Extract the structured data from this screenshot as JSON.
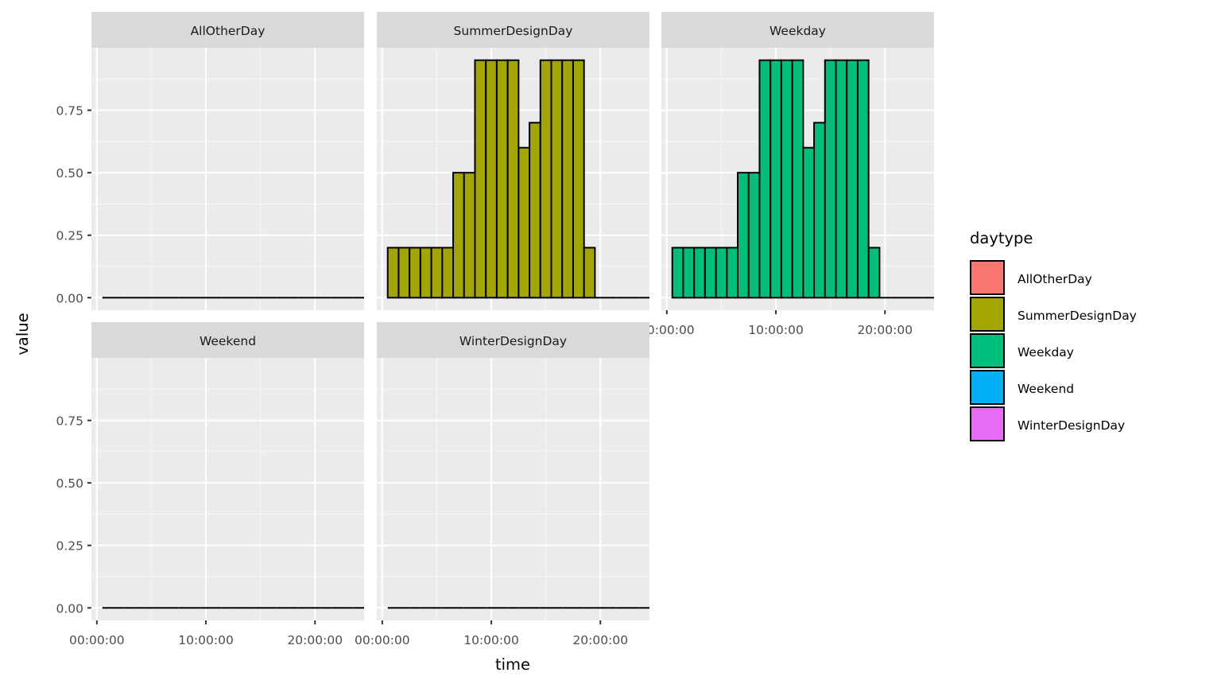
{
  "chart_data": {
    "type": "bar",
    "layout": "faceted",
    "xlabel": "time",
    "ylabel": "value",
    "ylim": [
      -0.05,
      1.0
    ],
    "yticks": [
      0.0,
      0.25,
      0.5,
      0.75
    ],
    "ytick_labels": [
      "0.00",
      "0.25",
      "0.50",
      "0.75"
    ],
    "xlim_hours": [
      -0.5,
      24.5
    ],
    "xticks_hours": [
      0,
      10,
      20
    ],
    "xtick_labels": [
      "00:00:00",
      "10:00:00",
      "20:00:00"
    ],
    "hours": [
      1,
      2,
      3,
      4,
      5,
      6,
      7,
      8,
      9,
      10,
      11,
      12,
      13,
      14,
      15,
      16,
      17,
      18,
      19,
      20,
      21,
      22,
      23,
      24
    ],
    "grid": true,
    "legend": {
      "title": "daytype",
      "position": "right",
      "entries": [
        {
          "label": "AllOtherDay",
          "color": "#F8766D"
        },
        {
          "label": "SummerDesignDay",
          "color": "#A3A500"
        },
        {
          "label": "Weekday",
          "color": "#00BF7D"
        },
        {
          "label": "Weekend",
          "color": "#00B0F6"
        },
        {
          "label": "WinterDesignDay",
          "color": "#E76BF3"
        }
      ]
    },
    "facets": [
      {
        "title": "AllOtherDay",
        "color": "#F8766D",
        "values": [
          0,
          0,
          0,
          0,
          0,
          0,
          0,
          0,
          0,
          0,
          0,
          0,
          0,
          0,
          0,
          0,
          0,
          0,
          0,
          0,
          0,
          0,
          0,
          0
        ]
      },
      {
        "title": "SummerDesignDay",
        "color": "#A3A500",
        "values": [
          0.2,
          0.2,
          0.2,
          0.2,
          0.2,
          0.2,
          0.5,
          0.5,
          0.95,
          0.95,
          0.95,
          0.95,
          0.6,
          0.7,
          0.95,
          0.95,
          0.95,
          0.95,
          0.2,
          0,
          0,
          0,
          0,
          0
        ]
      },
      {
        "title": "Weekday",
        "color": "#00BF7D",
        "values": [
          0.2,
          0.2,
          0.2,
          0.2,
          0.2,
          0.2,
          0.5,
          0.5,
          0.95,
          0.95,
          0.95,
          0.95,
          0.6,
          0.7,
          0.95,
          0.95,
          0.95,
          0.95,
          0.2,
          0,
          0,
          0,
          0,
          0
        ]
      },
      {
        "title": "Weekend",
        "color": "#00B0F6",
        "values": [
          0,
          0,
          0,
          0,
          0,
          0,
          0,
          0,
          0,
          0,
          0,
          0,
          0,
          0,
          0,
          0,
          0,
          0,
          0,
          0,
          0,
          0,
          0,
          0
        ]
      },
      {
        "title": "WinterDesignDay",
        "color": "#E76BF3",
        "values": [
          0,
          0,
          0,
          0,
          0,
          0,
          0,
          0,
          0,
          0,
          0,
          0,
          0,
          0,
          0,
          0,
          0,
          0,
          0,
          0,
          0,
          0,
          0,
          0
        ]
      }
    ]
  }
}
